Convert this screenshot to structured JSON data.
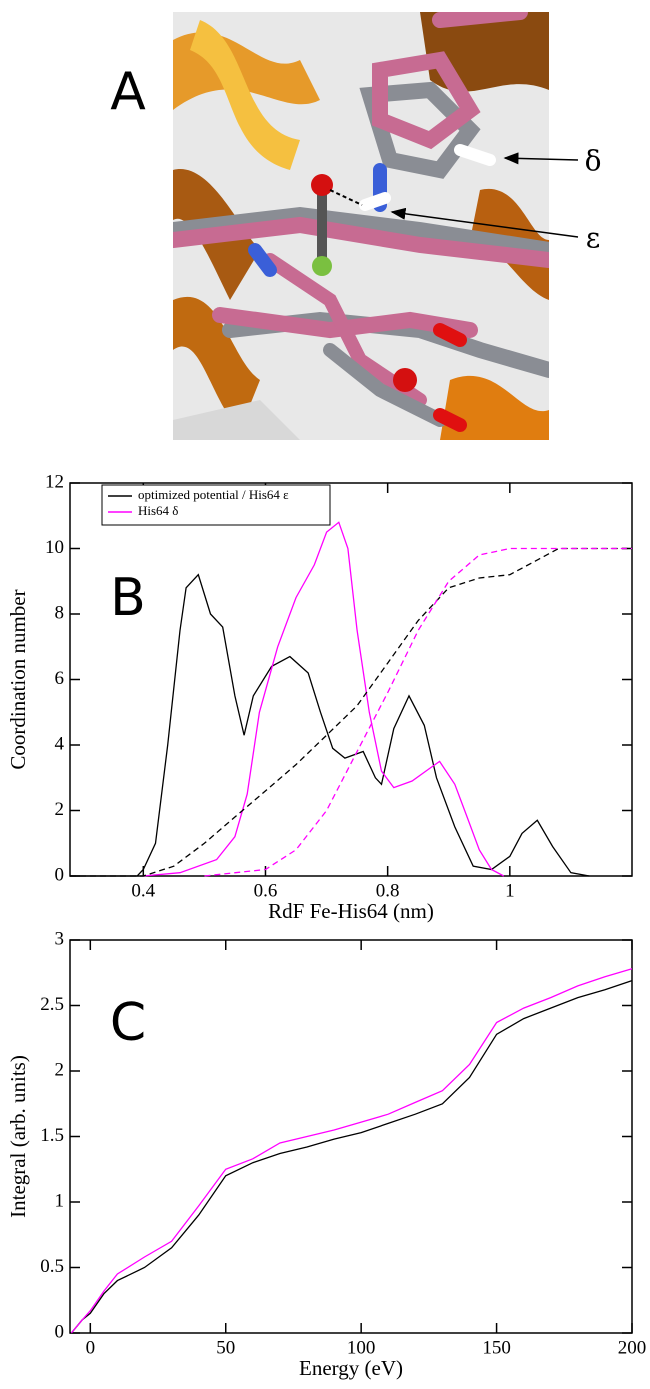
{
  "panel_a": {
    "label": "A",
    "annotations": [
      "δ",
      "ε"
    ]
  },
  "chart_data": [
    {
      "type": "line",
      "panel_label": "B",
      "x_label": "RdF Fe-His64 (nm)",
      "y_label": "Coordination number",
      "xlim": [
        0.28,
        1.2
      ],
      "ylim": [
        0,
        12
      ],
      "xticks": [
        0.4,
        0.6,
        0.8,
        1
      ],
      "yticks": [
        0,
        2,
        4,
        6,
        8,
        10,
        12
      ],
      "legend": "upper left",
      "series": [
        {
          "name": "optimized potential / His64 ε",
          "color": "#000000",
          "linestyle": "solid",
          "x": [
            0.28,
            0.39,
            0.4,
            0.42,
            0.44,
            0.46,
            0.47,
            0.49,
            0.51,
            0.53,
            0.55,
            0.565,
            0.58,
            0.61,
            0.64,
            0.67,
            0.69,
            0.71,
            0.73,
            0.76,
            0.78,
            0.79,
            0.81,
            0.835,
            0.86,
            0.88,
            0.91,
            0.94,
            0.97,
            1.0,
            1.02,
            1.045,
            1.07,
            1.1,
            1.13
          ],
          "values": [
            0,
            0,
            0.2,
            1,
            4,
            7.5,
            8.8,
            9.2,
            8,
            7.6,
            5.5,
            4.3,
            5.5,
            6.4,
            6.7,
            6.2,
            5,
            3.9,
            3.6,
            3.8,
            3.0,
            2.8,
            4.5,
            5.5,
            4.6,
            3.0,
            1.5,
            0.3,
            0.2,
            0.6,
            1.3,
            1.7,
            0.9,
            0.1,
            0
          ]
        },
        {
          "name": "His64 δ",
          "color": "#ff00ff",
          "linestyle": "solid",
          "x": [
            0.4,
            0.46,
            0.52,
            0.55,
            0.57,
            0.59,
            0.62,
            0.65,
            0.68,
            0.7,
            0.72,
            0.735,
            0.75,
            0.77,
            0.79,
            0.81,
            0.84,
            0.87,
            0.885,
            0.91,
            0.93,
            0.95,
            0.97,
            0.99
          ],
          "values": [
            0,
            0.1,
            0.5,
            1.2,
            2.5,
            5,
            7,
            8.5,
            9.5,
            10.5,
            10.8,
            10,
            7.5,
            5,
            3.2,
            2.7,
            2.9,
            3.3,
            3.5,
            2.8,
            1.8,
            0.8,
            0.2,
            0
          ]
        },
        {
          "color": "#000000",
          "linestyle": "dashed",
          "x": [
            0.28,
            0.4,
            0.45,
            0.5,
            0.55,
            0.6,
            0.65,
            0.7,
            0.75,
            0.8,
            0.85,
            0.9,
            0.95,
            1.0,
            1.04,
            1.08,
            1.2
          ],
          "values": [
            0,
            0,
            0.3,
            1.0,
            1.8,
            2.6,
            3.4,
            4.3,
            5.2,
            6.5,
            7.8,
            8.8,
            9.1,
            9.2,
            9.6,
            10,
            10
          ]
        },
        {
          "color": "#ff00ff",
          "linestyle": "dashed",
          "x": [
            0.5,
            0.6,
            0.65,
            0.7,
            0.75,
            0.8,
            0.85,
            0.9,
            0.95,
            1.0,
            1.2
          ],
          "values": [
            0,
            0.2,
            0.8,
            2.0,
            3.8,
            5.6,
            7.5,
            9.0,
            9.8,
            10,
            10
          ]
        }
      ]
    },
    {
      "type": "line",
      "panel_label": "C",
      "x_label": "Energy (eV)",
      "y_label": "Integral (arb. units)",
      "xlim": [
        -7.5,
        200
      ],
      "ylim": [
        0,
        3
      ],
      "xticks": [
        0,
        50,
        100,
        150,
        200
      ],
      "yticks": [
        0,
        0.5,
        1,
        1.5,
        2,
        2.5,
        3
      ],
      "series": [
        {
          "color": "#000000",
          "linestyle": "solid",
          "x": [
            -7,
            -3,
            0,
            5,
            10,
            20,
            30,
            40,
            50,
            60,
            70,
            80,
            90,
            100,
            110,
            120,
            130,
            140,
            150,
            160,
            170,
            180,
            190,
            200
          ],
          "values": [
            0,
            0.1,
            0.15,
            0.3,
            0.4,
            0.5,
            0.65,
            0.9,
            1.2,
            1.3,
            1.37,
            1.42,
            1.48,
            1.53,
            1.6,
            1.67,
            1.75,
            1.95,
            2.28,
            2.4,
            2.48,
            2.56,
            2.62,
            2.69
          ]
        },
        {
          "color": "#ff00ff",
          "linestyle": "solid",
          "x": [
            -7,
            -3,
            0,
            5,
            10,
            20,
            30,
            40,
            50,
            60,
            70,
            80,
            90,
            100,
            110,
            120,
            130,
            140,
            150,
            160,
            170,
            180,
            190,
            200
          ],
          "values": [
            0,
            0.1,
            0.17,
            0.32,
            0.45,
            0.58,
            0.7,
            0.97,
            1.25,
            1.33,
            1.45,
            1.5,
            1.55,
            1.61,
            1.67,
            1.76,
            1.85,
            2.05,
            2.37,
            2.48,
            2.56,
            2.65,
            2.72,
            2.78
          ]
        }
      ]
    }
  ]
}
